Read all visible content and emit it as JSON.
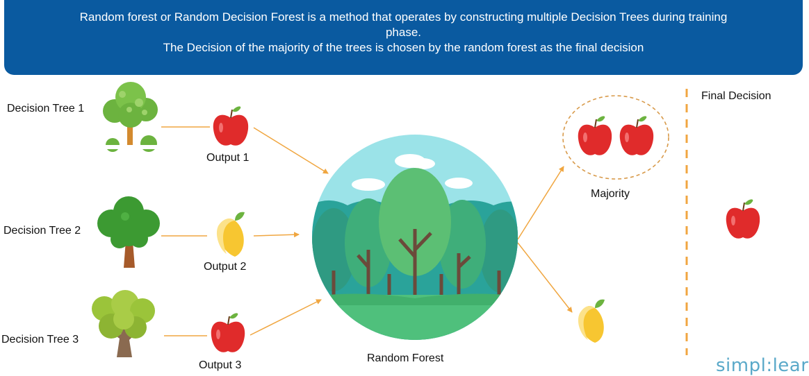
{
  "header": {
    "line1": "Random forest or Random Decision Forest is a method that operates by constructing multiple Decision Trees during training",
    "line2": "phase.",
    "line3": "The Decision of the majority of the trees is chosen by  the random forest as the final decision"
  },
  "trees": [
    {
      "label": "Decision Tree 1",
      "output_label": "Output 1",
      "output_icon": "red-apple-icon"
    },
    {
      "label": "Decision Tree 2",
      "output_label": "Output 2",
      "output_icon": "yellow-mango-icon"
    },
    {
      "label": "Decision Tree 3",
      "output_label": "Output 3",
      "output_icon": "red-apple-icon"
    }
  ],
  "center": {
    "label": "Random Forest",
    "icon": "forest-icon"
  },
  "majority": {
    "label": "Majority",
    "icon": "two-red-apples-icon"
  },
  "final_decision": {
    "label": "Final Decision",
    "icon": "red-apple-icon"
  },
  "logo": {
    "text": "simpl:learn"
  },
  "colors": {
    "banner": "#0a5aa0",
    "arrow": "#f0a640",
    "apple": "#e02b2b",
    "mango": "#f7c631",
    "leaf": "#6cb33f"
  }
}
